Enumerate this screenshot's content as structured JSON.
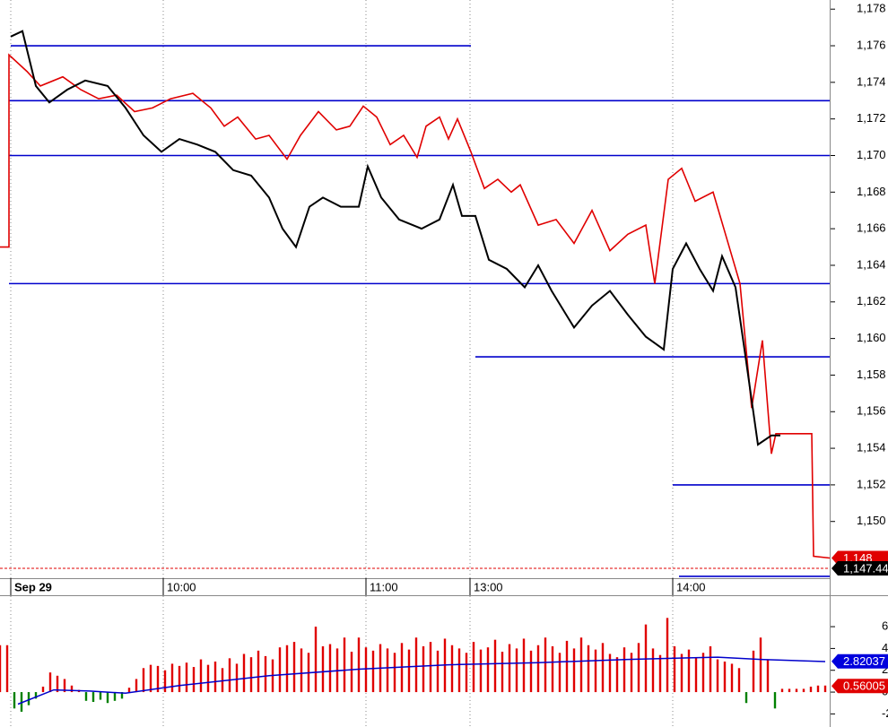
{
  "chart_data": [
    {
      "type": "line",
      "xlim": [
        0,
        231.25
      ],
      "xticks": [
        {
          "value": 3,
          "label": "Sep 29"
        },
        {
          "value": 45.5,
          "label": "10:00"
        },
        {
          "value": 102,
          "label": "11:00"
        },
        {
          "value": 131,
          "label": "13:00"
        },
        {
          "value": 187.5,
          "label": "14:00"
        }
      ],
      "ylim": [
        1146.9,
        1178.5
      ],
      "yticks": [
        {
          "value": 1150,
          "label": "1,150"
        },
        {
          "value": 1152,
          "label": "1,152"
        },
        {
          "value": 1154,
          "label": "1,154"
        },
        {
          "value": 1156,
          "label": "1,156"
        },
        {
          "value": 1158,
          "label": "1,158"
        },
        {
          "value": 1160,
          "label": "1,160"
        },
        {
          "value": 1162,
          "label": "1,162"
        },
        {
          "value": 1164,
          "label": "1,164"
        },
        {
          "value": 1166,
          "label": "1,166"
        },
        {
          "value": 1168,
          "label": "1,168"
        },
        {
          "value": 1170,
          "label": "1,170"
        },
        {
          "value": 1172,
          "label": "1,172"
        },
        {
          "value": 1174,
          "label": "1,174"
        },
        {
          "value": 1176,
          "label": "1,176"
        },
        {
          "value": 1178,
          "label": "1,178"
        }
      ],
      "grid": true,
      "series": [
        {
          "color": "#e00000",
          "x": [
            0,
            2.5,
            2.5,
            7.5,
            11.25,
            17.5,
            22.5,
            27.5,
            32.5,
            37.5,
            42.5,
            47.5,
            53.75,
            58.75,
            62.5,
            66.25,
            71.25,
            75,
            80,
            83.75,
            88.75,
            93.75,
            97.5,
            101.25,
            105,
            108.75,
            112.5,
            116.25,
            118.75,
            122.5,
            125,
            127.5,
            131.25,
            135,
            138.75,
            142.5,
            145,
            150,
            155,
            160,
            165,
            170,
            175,
            180,
            182.5,
            186.25,
            190,
            193.75,
            198.75,
            202.5,
            206.25,
            209.5,
            212.5,
            215,
            216.25,
            226.25,
            226.75,
            231.25
          ],
          "values": [
            1165.0,
            1165.0,
            1175.5,
            1174.6,
            1173.8,
            1174.3,
            1173.6,
            1173.1,
            1173.3,
            1172.4,
            1172.6,
            1173.1,
            1173.4,
            1172.6,
            1171.6,
            1172.1,
            1170.9,
            1171.1,
            1169.8,
            1171.1,
            1172.4,
            1171.4,
            1171.6,
            1172.7,
            1172.1,
            1170.6,
            1171.1,
            1169.9,
            1171.6,
            1172.1,
            1170.9,
            1172.0,
            1170.2,
            1168.2,
            1168.7,
            1168.0,
            1168.4,
            1166.2,
            1166.5,
            1165.2,
            1167.0,
            1164.8,
            1165.7,
            1166.2,
            1163.0,
            1168.7,
            1169.3,
            1167.5,
            1168.0,
            1165.5,
            1163.0,
            1156.2,
            1159.9,
            1153.7,
            1154.8,
            1154.8,
            1148.1,
            1148.0
          ]
        },
        {
          "color": "#000000",
          "x": [
            3,
            6.25,
            10,
            13.75,
            18.75,
            23.75,
            30,
            35,
            40,
            45,
            50,
            55,
            60,
            65,
            70,
            75,
            78.75,
            82.5,
            86.25,
            90,
            95,
            100,
            102.5,
            106.25,
            111.25,
            117.5,
            122.5,
            126.25,
            128.75,
            132.5,
            136.25,
            141.25,
            146.25,
            150,
            153.75,
            160,
            165,
            170,
            175,
            180,
            185,
            187.5,
            191.25,
            195,
            198.75,
            201.25,
            205,
            207.5,
            211.25,
            215,
            217.5
          ],
          "values": [
            1176.5,
            1176.8,
            1173.8,
            1172.9,
            1173.6,
            1174.1,
            1173.8,
            1172.6,
            1171.1,
            1170.2,
            1170.9,
            1170.6,
            1170.2,
            1169.2,
            1168.9,
            1167.7,
            1166.0,
            1165.0,
            1167.2,
            1167.7,
            1167.2,
            1167.2,
            1169.4,
            1167.7,
            1166.5,
            1166.0,
            1166.5,
            1168.4,
            1166.7,
            1166.7,
            1164.3,
            1163.8,
            1162.8,
            1164.0,
            1162.6,
            1160.6,
            1161.8,
            1162.6,
            1161.3,
            1160.1,
            1159.4,
            1163.8,
            1165.2,
            1163.8,
            1162.6,
            1164.5,
            1162.8,
            1159.4,
            1154.2,
            1154.7,
            1154.7
          ]
        }
      ],
      "level_color": "#0000cc",
      "levels": [
        {
          "value": 1176,
          "x": [
            3,
            131.25
          ]
        },
        {
          "value": 1173,
          "x": [
            2.5,
            231.25
          ]
        },
        {
          "value": 1170,
          "x": [
            2.5,
            231.25
          ]
        },
        {
          "value": 1163,
          "x": [
            2.5,
            231.25
          ]
        },
        {
          "value": 1159,
          "x": [
            132.5,
            231.25
          ]
        },
        {
          "value": 1152,
          "x": [
            187.5,
            231.25
          ]
        },
        {
          "value": 1147.0,
          "x": [
            189.25,
            231.25
          ]
        }
      ],
      "price_markers": [
        {
          "label": "1,148",
          "value": 1148,
          "color": "#e00000",
          "dashed": false
        },
        {
          "label": "1,147.44",
          "value": 1147.44,
          "color": "#000000",
          "dashed": true
        }
      ]
    },
    {
      "type": "bar",
      "xlim": [
        0,
        231.25
      ],
      "ylim": [
        -3.2,
        8.8
      ],
      "yticks": [
        -2,
        0,
        2,
        4,
        6
      ],
      "up_color": "#e00000",
      "down_color": "#008000",
      "x": [
        0,
        2,
        4,
        6,
        8,
        10,
        12,
        14,
        16,
        18,
        20,
        22,
        24,
        26,
        28,
        30,
        32,
        34,
        36,
        38,
        40,
        42,
        44,
        46,
        48,
        50,
        52,
        54,
        56,
        58,
        60,
        62,
        64,
        66,
        68,
        70,
        72,
        74,
        76,
        78,
        80,
        82,
        84,
        86,
        88,
        90,
        92,
        94,
        96,
        98,
        100,
        102,
        104,
        106,
        108,
        110,
        112,
        114,
        116,
        118,
        120,
        122,
        124,
        126,
        128,
        130,
        132,
        134,
        136,
        138,
        140,
        142,
        144,
        146,
        148,
        150,
        152,
        154,
        156,
        158,
        160,
        162,
        164,
        166,
        168,
        170,
        172,
        174,
        176,
        178,
        180,
        182,
        184,
        186,
        188,
        190,
        192,
        194,
        196,
        198,
        200,
        202,
        204,
        206,
        208,
        210,
        212,
        214,
        216,
        218,
        220,
        222,
        224,
        226,
        228,
        230
      ],
      "values": [
        4.3,
        4.3,
        -1.5,
        -1.8,
        -1.2,
        -0.6,
        0.5,
        1.8,
        1.5,
        1.2,
        0.6,
        0.2,
        -0.8,
        -0.9,
        -0.7,
        -1.0,
        -0.8,
        -0.6,
        0.4,
        1.2,
        2.2,
        2.5,
        2.4,
        2.0,
        2.6,
        2.4,
        2.7,
        2.3,
        3.0,
        2.5,
        2.8,
        2.2,
        3.1,
        2.6,
        3.5,
        3.2,
        3.8,
        3.3,
        3.0,
        4.1,
        4.3,
        4.6,
        4.0,
        3.6,
        6.0,
        4.2,
        4.4,
        4.0,
        5.0,
        3.7,
        5.0,
        4.1,
        3.8,
        4.4,
        4.0,
        3.6,
        4.5,
        3.9,
        5.0,
        4.2,
        4.6,
        3.8,
        4.9,
        4.3,
        4.0,
        3.6,
        4.6,
        3.9,
        4.1,
        4.8,
        3.7,
        4.4,
        4.0,
        4.9,
        3.8,
        4.3,
        5.0,
        4.2,
        3.6,
        4.7,
        4.0,
        5.0,
        4.3,
        3.9,
        4.5,
        3.5,
        3.2,
        4.1,
        3.6,
        4.5,
        6.2,
        4.0,
        3.4,
        6.8,
        4.2,
        3.5,
        3.9,
        3.2,
        3.6,
        4.2,
        3.0,
        2.8,
        2.6,
        2.2,
        -1.0,
        3.8,
        5.0,
        3.0,
        -1.5,
        0.3,
        0.3,
        0.3,
        0.3,
        0.5,
        0.6,
        0.6
      ],
      "line": {
        "color": "#0000cc",
        "x": [
          5,
          15,
          25,
          35,
          50,
          75,
          100,
          125,
          150,
          175,
          200,
          212,
          230
        ],
        "values": [
          -1.1,
          0.2,
          0.1,
          -0.1,
          0.6,
          1.5,
          2.1,
          2.5,
          2.7,
          3.0,
          3.2,
          3.0,
          2.8
        ]
      },
      "price_markers": [
        {
          "label": "2.82037",
          "value": 2.82037,
          "color": "#0000dd",
          "dashed": false
        },
        {
          "label": "0.56005",
          "value": 0.56005,
          "color": "#e00000",
          "dashed": false
        }
      ]
    }
  ]
}
